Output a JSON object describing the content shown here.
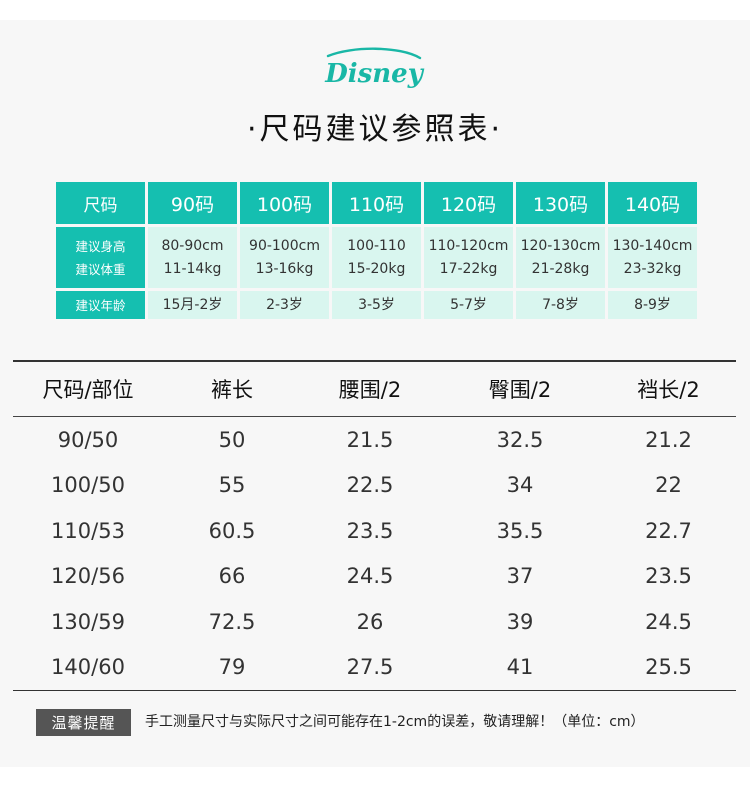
{
  "brand": {
    "logo_text": "Disney",
    "color": "#19b7a6"
  },
  "title": "·尺码建议参照表·",
  "size_chart": {
    "header": [
      "尺码",
      "90码",
      "100码",
      "110码",
      "120码",
      "130码",
      "140码"
    ],
    "row_labels": {
      "height": "建议身高",
      "weight": "建议体重",
      "age": "建议年龄"
    },
    "heights": [
      "80-90cm",
      "90-100cm",
      "100-110",
      "110-120cm",
      "120-130cm",
      "130-140cm"
    ],
    "weights": [
      "11-14kg",
      "13-16kg",
      "15-20kg",
      "17-22kg",
      "21-28kg",
      "23-32kg"
    ],
    "ages": [
      "15月-2岁",
      "2-3岁",
      "3-5岁",
      "5-7岁",
      "7-8岁",
      "8-9岁"
    ],
    "accent": "#15bfb0",
    "cell_bg": "#d9f6ef"
  },
  "measure_table": {
    "headers": [
      "尺码/部位",
      "裤长",
      "腰围/2",
      "臀围/2",
      "裆长/2"
    ],
    "rows": [
      [
        "90/50",
        "50",
        "21.5",
        "32.5",
        "21.2"
      ],
      [
        "100/50",
        "55",
        "22.5",
        "34",
        "22"
      ],
      [
        "110/53",
        "60.5",
        "23.5",
        "35.5",
        "22.7"
      ],
      [
        "120/56",
        "66",
        "24.5",
        "37",
        "23.5"
      ],
      [
        "130/59",
        "72.5",
        "26",
        "39",
        "24.5"
      ],
      [
        "140/60",
        "79",
        "27.5",
        "41",
        "25.5"
      ]
    ]
  },
  "note": {
    "badge": "温馨提醒",
    "text": "手工测量尺寸与实际尺寸之间可能存在1-2cm的误差，敬请理解！（单位：cm）"
  }
}
